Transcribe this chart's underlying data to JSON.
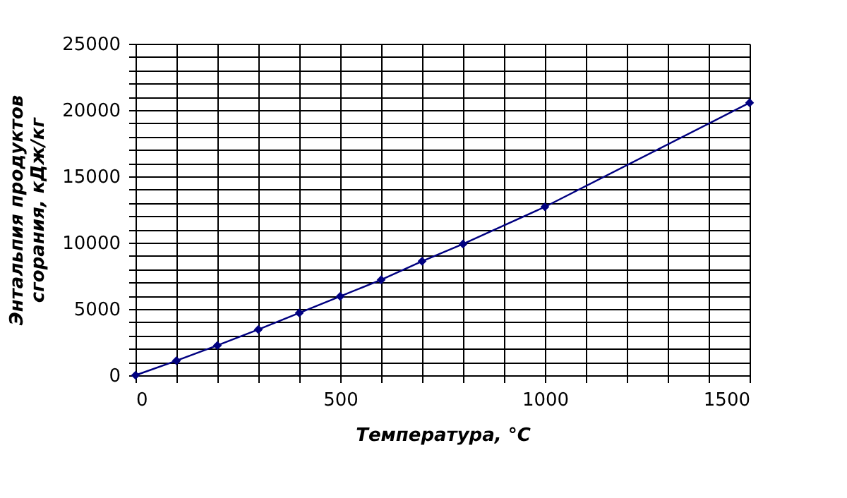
{
  "chart_data": {
    "type": "line",
    "xlabel": "Температура, °C",
    "ylabel": "Энтальпия продуктов\nсгорания, кДж/кг",
    "x": [
      0,
      100,
      200,
      300,
      400,
      500,
      600,
      700,
      800,
      1000,
      1500
    ],
    "series": [
      {
        "color": "#000080",
        "values": [
          0,
          1100,
          2250,
          3450,
          4700,
          5950,
          7200,
          8600,
          9900,
          12700,
          20550
        ]
      }
    ],
    "marker": "diamond",
    "line_style": "solid",
    "grid": true,
    "xlim": [
      0,
      1500
    ],
    "xticks": [
      0,
      {
        "value": 100,
        "label": null
      },
      {
        "value": 200,
        "label": null
      },
      {
        "value": 300,
        "label": null
      },
      {
        "value": 400,
        "label": null
      },
      500,
      {
        "value": 600,
        "label": null
      },
      {
        "value": 700,
        "label": null
      },
      {
        "value": 800,
        "label": null
      },
      {
        "value": 900,
        "label": null
      },
      1000,
      {
        "value": 1100,
        "label": null
      },
      {
        "value": 1200,
        "label": null
      },
      {
        "value": 1300,
        "label": null
      },
      {
        "value": 1400,
        "label": null
      },
      1500
    ],
    "ylim": [
      0,
      25000
    ],
    "yticks": [
      0,
      {
        "value": 1000,
        "label": null
      },
      {
        "value": 2000,
        "label": null
      },
      {
        "value": 3000,
        "label": null
      },
      {
        "value": 4000,
        "label": null
      },
      5000,
      {
        "value": 6000,
        "label": null
      },
      {
        "value": 7000,
        "label": null
      },
      {
        "value": 8000,
        "label": null
      },
      {
        "value": 9000,
        "label": null
      },
      10000,
      {
        "value": 11000,
        "label": null
      },
      {
        "value": 12000,
        "label": null
      },
      {
        "value": 13000,
        "label": null
      },
      {
        "value": 14000,
        "label": null
      },
      15000,
      {
        "value": 16000,
        "label": null
      },
      {
        "value": 17000,
        "label": null
      },
      {
        "value": 18000,
        "label": null
      },
      {
        "value": 19000,
        "label": null
      },
      20000,
      {
        "value": 21000,
        "label": null
      },
      {
        "value": 22000,
        "label": null
      },
      {
        "value": 23000,
        "label": null
      },
      {
        "value": 24000,
        "label": null
      },
      25000
    ]
  }
}
